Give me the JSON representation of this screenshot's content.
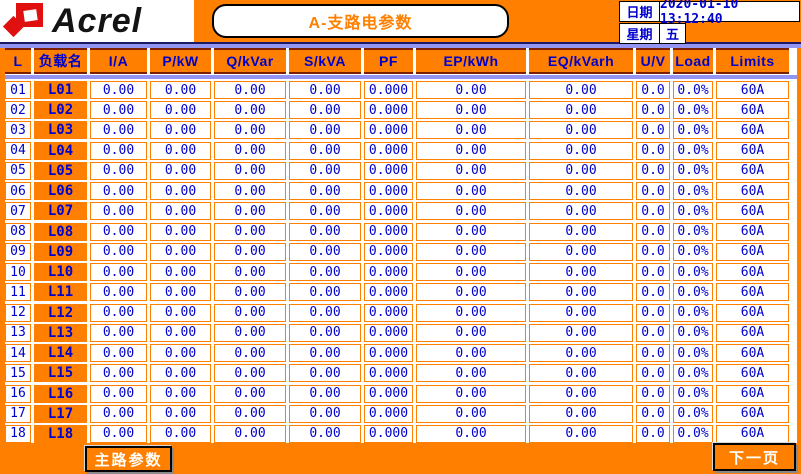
{
  "brand": {
    "logo_text": "Acrel"
  },
  "header": {
    "title": "A-支路电参数",
    "date_label": "日期",
    "date_value": "2020-01-10 13:12:40",
    "week_label": "星期",
    "week_value": "五"
  },
  "table": {
    "columns": [
      "L",
      "负载名",
      "I/A",
      "P/kW",
      "Q/kVar",
      "S/kVA",
      "PF",
      "EP/kWh",
      "EQ/kVarh",
      "U/V",
      "Load",
      "Limits"
    ],
    "rows": [
      {
        "no": "01",
        "name": "L01",
        "values": [
          "0.00",
          "0.00",
          "0.00",
          "0.00",
          "0.000",
          "0.00",
          "0.00",
          "0.0",
          "0.0%",
          "60A"
        ]
      },
      {
        "no": "02",
        "name": "L02",
        "values": [
          "0.00",
          "0.00",
          "0.00",
          "0.00",
          "0.000",
          "0.00",
          "0.00",
          "0.0",
          "0.0%",
          "60A"
        ]
      },
      {
        "no": "03",
        "name": "L03",
        "values": [
          "0.00",
          "0.00",
          "0.00",
          "0.00",
          "0.000",
          "0.00",
          "0.00",
          "0.0",
          "0.0%",
          "60A"
        ]
      },
      {
        "no": "04",
        "name": "L04",
        "values": [
          "0.00",
          "0.00",
          "0.00",
          "0.00",
          "0.000",
          "0.00",
          "0.00",
          "0.0",
          "0.0%",
          "60A"
        ]
      },
      {
        "no": "05",
        "name": "L05",
        "values": [
          "0.00",
          "0.00",
          "0.00",
          "0.00",
          "0.000",
          "0.00",
          "0.00",
          "0.0",
          "0.0%",
          "60A"
        ]
      },
      {
        "no": "06",
        "name": "L06",
        "values": [
          "0.00",
          "0.00",
          "0.00",
          "0.00",
          "0.000",
          "0.00",
          "0.00",
          "0.0",
          "0.0%",
          "60A"
        ]
      },
      {
        "no": "07",
        "name": "L07",
        "values": [
          "0.00",
          "0.00",
          "0.00",
          "0.00",
          "0.000",
          "0.00",
          "0.00",
          "0.0",
          "0.0%",
          "60A"
        ]
      },
      {
        "no": "08",
        "name": "L08",
        "values": [
          "0.00",
          "0.00",
          "0.00",
          "0.00",
          "0.000",
          "0.00",
          "0.00",
          "0.0",
          "0.0%",
          "60A"
        ]
      },
      {
        "no": "09",
        "name": "L09",
        "values": [
          "0.00",
          "0.00",
          "0.00",
          "0.00",
          "0.000",
          "0.00",
          "0.00",
          "0.0",
          "0.0%",
          "60A"
        ]
      },
      {
        "no": "10",
        "name": "L10",
        "values": [
          "0.00",
          "0.00",
          "0.00",
          "0.00",
          "0.000",
          "0.00",
          "0.00",
          "0.0",
          "0.0%",
          "60A"
        ]
      },
      {
        "no": "11",
        "name": "L11",
        "values": [
          "0.00",
          "0.00",
          "0.00",
          "0.00",
          "0.000",
          "0.00",
          "0.00",
          "0.0",
          "0.0%",
          "60A"
        ]
      },
      {
        "no": "12",
        "name": "L12",
        "values": [
          "0.00",
          "0.00",
          "0.00",
          "0.00",
          "0.000",
          "0.00",
          "0.00",
          "0.0",
          "0.0%",
          "60A"
        ]
      },
      {
        "no": "13",
        "name": "L13",
        "values": [
          "0.00",
          "0.00",
          "0.00",
          "0.00",
          "0.000",
          "0.00",
          "0.00",
          "0.0",
          "0.0%",
          "60A"
        ]
      },
      {
        "no": "14",
        "name": "L14",
        "values": [
          "0.00",
          "0.00",
          "0.00",
          "0.00",
          "0.000",
          "0.00",
          "0.00",
          "0.0",
          "0.0%",
          "60A"
        ]
      },
      {
        "no": "15",
        "name": "L15",
        "values": [
          "0.00",
          "0.00",
          "0.00",
          "0.00",
          "0.000",
          "0.00",
          "0.00",
          "0.0",
          "0.0%",
          "60A"
        ]
      },
      {
        "no": "16",
        "name": "L16",
        "values": [
          "0.00",
          "0.00",
          "0.00",
          "0.00",
          "0.000",
          "0.00",
          "0.00",
          "0.0",
          "0.0%",
          "60A"
        ]
      },
      {
        "no": "17",
        "name": "L17",
        "values": [
          "0.00",
          "0.00",
          "0.00",
          "0.00",
          "0.000",
          "0.00",
          "0.00",
          "0.0",
          "0.0%",
          "60A"
        ]
      },
      {
        "no": "18",
        "name": "L18",
        "values": [
          "0.00",
          "0.00",
          "0.00",
          "0.00",
          "0.000",
          "0.00",
          "0.00",
          "0.0",
          "0.0%",
          "60A"
        ]
      }
    ]
  },
  "footer": {
    "main_params_button": "主路参数",
    "next_page_button": "下一页"
  },
  "colors": {
    "orange": "#FF8000",
    "blue_text": "#0000CC",
    "periwinkle": "#9494F2",
    "navy_line": "#1A1A66",
    "maroon_line": "#7B2000"
  }
}
